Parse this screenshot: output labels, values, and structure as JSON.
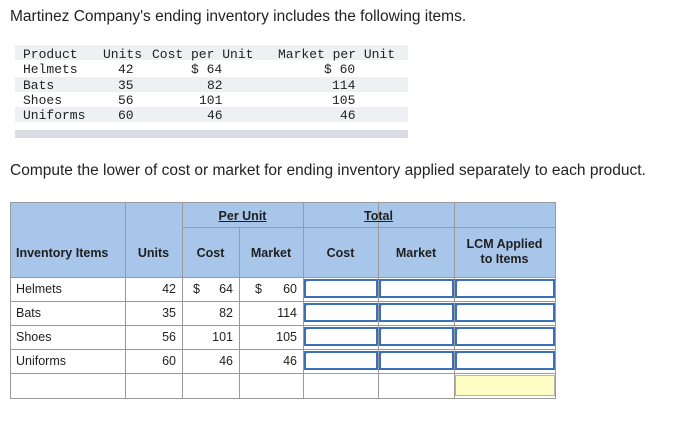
{
  "question": {
    "intro": "Martinez Company's ending inventory includes the following items.",
    "instruction": "Compute the lower of cost or market for ending inventory applied separately to each product."
  },
  "data_table": {
    "headers": [
      "Product",
      "Units",
      "Cost per Unit",
      "Market per Unit"
    ],
    "rows": [
      [
        "Helmets",
        "42",
        "$ 64",
        "$ 60"
      ],
      [
        "Bats",
        "35",
        "82",
        "114"
      ],
      [
        "Shoes",
        "56",
        "101",
        "105"
      ],
      [
        "Uniforms",
        "60",
        "46",
        "46"
      ]
    ]
  },
  "answer_table": {
    "group_headers": {
      "per_unit": "Per Unit",
      "total": "Total"
    },
    "columns": {
      "item": "Inventory Items",
      "units": "Units",
      "cost": "Cost",
      "market": "Market",
      "total_cost": "Cost",
      "total_market": "Market",
      "lcm": "LCM Applied to Items"
    },
    "rows": [
      {
        "item": "Helmets",
        "units": "42",
        "cost_sign": "$",
        "cost": "64",
        "market_sign": "$",
        "market": "60"
      },
      {
        "item": "Bats",
        "units": "35",
        "cost_sign": "",
        "cost": "82",
        "market_sign": "",
        "market": "114"
      },
      {
        "item": "Shoes",
        "units": "56",
        "cost_sign": "",
        "cost": "101",
        "market_sign": "",
        "market": "105"
      },
      {
        "item": "Uniforms",
        "units": "60",
        "cost_sign": "",
        "cost": "46",
        "market_sign": "",
        "market": "46"
      }
    ],
    "inputs": {
      "total_cost": [
        "",
        "",
        "",
        ""
      ],
      "total_market": [
        "",
        "",
        "",
        ""
      ],
      "lcm": [
        "",
        "",
        "",
        ""
      ],
      "grand_total": ""
    }
  },
  "colors": {
    "header_fill": "#a8c6ea",
    "input_border": "#3a70b8",
    "total_highlight": "#fdfdc4"
  }
}
